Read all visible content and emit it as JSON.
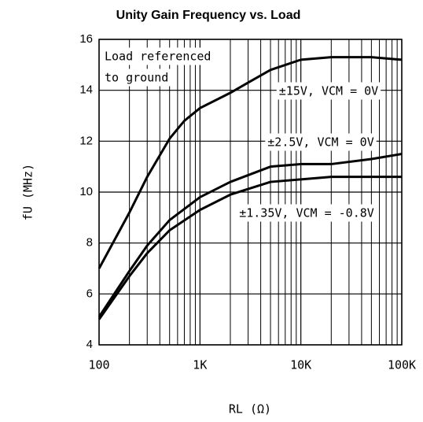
{
  "chart_data": {
    "type": "line",
    "title": "Unity Gain Frequency vs. Load",
    "x_label": "RL (Ω)",
    "y_label": "fU (MHz)",
    "annotation": [
      "Load referenced",
      "to ground"
    ],
    "xscale": "log",
    "xlim": [
      100,
      100000
    ],
    "xticks": [
      {
        "value": 100,
        "label": "100"
      },
      {
        "value": 1000,
        "label": "1K"
      },
      {
        "value": 10000,
        "label": "10K"
      },
      {
        "value": 100000,
        "label": "100K"
      }
    ],
    "xminor": [
      200,
      300,
      400,
      500,
      600,
      700,
      800,
      900,
      2000,
      3000,
      4000,
      5000,
      6000,
      7000,
      8000,
      9000,
      20000,
      30000,
      40000,
      50000,
      60000,
      70000,
      80000,
      90000
    ],
    "ylim": [
      4,
      16
    ],
    "yticks": [
      4,
      6,
      8,
      10,
      12,
      14,
      16
    ],
    "grid": true,
    "series": [
      {
        "name": "±15V, VCM = 0V",
        "color": "#000000",
        "x": [
          100,
          200,
          300,
          500,
          700,
          1000,
          2000,
          3000,
          5000,
          10000,
          20000,
          50000,
          100000
        ],
        "values": [
          7.0,
          9.2,
          10.6,
          12.1,
          12.8,
          13.3,
          13.9,
          14.3,
          14.8,
          15.2,
          15.3,
          15.3,
          15.2
        ]
      },
      {
        "name": "±2.5V, VCM = 0V",
        "color": "#000000",
        "x": [
          100,
          200,
          300,
          500,
          1000,
          2000,
          5000,
          10000,
          20000,
          50000,
          100000
        ],
        "values": [
          5.1,
          6.9,
          7.9,
          8.9,
          9.8,
          10.4,
          11.0,
          11.1,
          11.1,
          11.3,
          11.5
        ]
      },
      {
        "name": "±1.35V, VCM = -0.8V",
        "color": "#000000",
        "x": [
          100,
          200,
          300,
          500,
          1000,
          2000,
          5000,
          10000,
          20000,
          100000
        ],
        "values": [
          5.0,
          6.7,
          7.6,
          8.5,
          9.3,
          9.9,
          10.4,
          10.5,
          10.6,
          10.6
        ]
      }
    ]
  }
}
